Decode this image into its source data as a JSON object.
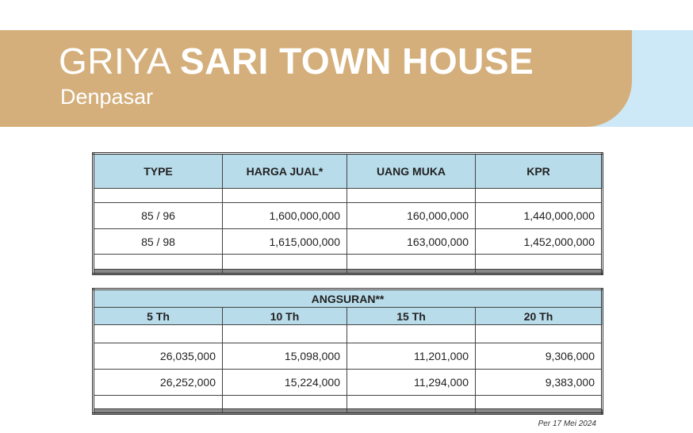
{
  "header": {
    "title_light": "GRIYA",
    "title_bold": "SARI TOWN HOUSE",
    "subtitle": "Denpasar",
    "colors": {
      "tan": "#d4af7b",
      "light_blue": "#cde8f6"
    }
  },
  "price_table": {
    "headers": [
      "TYPE",
      "HARGA JUAL*",
      "UANG MUKA",
      "KPR"
    ],
    "rows": [
      [
        "85 / 96",
        "1,600,000,000",
        "160,000,000",
        "1,440,000,000"
      ],
      [
        "85 / 98",
        "1,615,000,000",
        "163,000,000",
        "1,452,000,000"
      ]
    ]
  },
  "installment_table": {
    "title": "ANGSURAN**",
    "headers": [
      "5 Th",
      "10 Th",
      "15 Th",
      "20 Th"
    ],
    "rows": [
      [
        "26,035,000",
        "15,098,000",
        "11,201,000",
        "9,306,000"
      ],
      [
        "26,252,000",
        "15,224,000",
        "11,294,000",
        "9,383,000"
      ]
    ]
  },
  "footnote": "Per 17 Mei 2024"
}
